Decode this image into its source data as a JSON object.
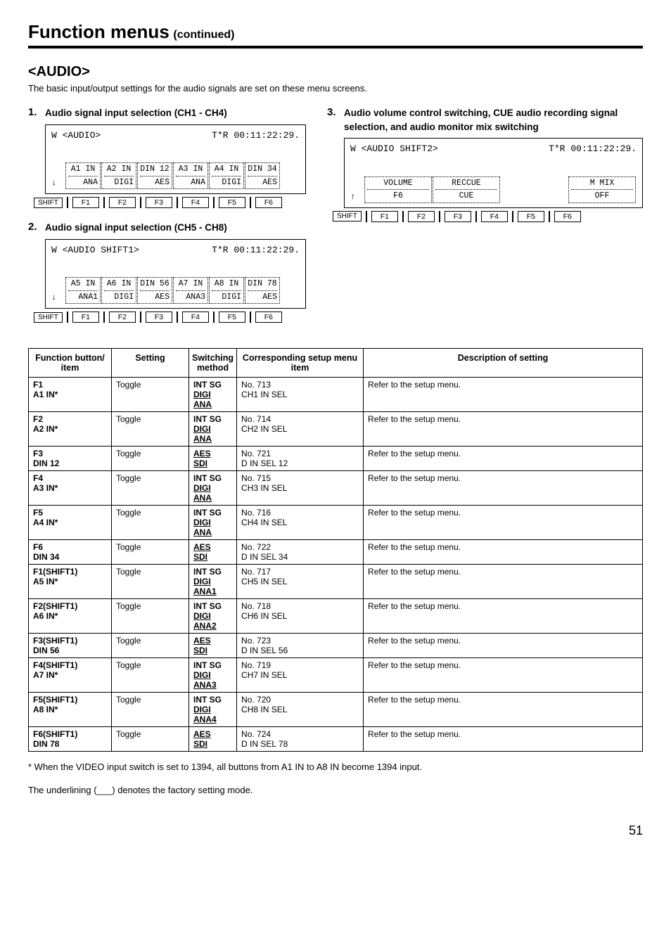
{
  "page": {
    "title_main": "Function menus",
    "title_sub": "(continued)",
    "section_heading": "<AUDIO>",
    "section_intro": "The basic input/output settings for the audio signals are set on these menu screens.",
    "page_number": "51"
  },
  "items": {
    "i1": {
      "num": "1.",
      "title": "Audio signal input selection (CH1 - CH4)"
    },
    "i2": {
      "num": "2.",
      "title": "Audio signal input selection (CH5 - CH8)"
    },
    "i3": {
      "num": "3.",
      "title": "Audio volume control switching, CUE audio recording signal selection, and audio monitor mix switching"
    }
  },
  "lcd1": {
    "hdr_left": "W <AUDIO>",
    "hdr_right": "T*R 00:11:22:29.",
    "arrow": "↓",
    "s1_top": "A1 IN",
    "s1_bot": "ANA",
    "s2_top": "A2 IN",
    "s2_bot": "DIGI",
    "s3_top": "DIN 12",
    "s3_bot": "AES",
    "s4_top": "A3 IN",
    "s4_bot": "ANA",
    "s5_top": "A4 IN",
    "s5_bot": "DIGI",
    "s6_top": "DIN 34",
    "s6_bot": "AES"
  },
  "lcd2": {
    "hdr_left": "W <AUDIO SHIFT1>",
    "hdr_right": "T*R 00:11:22:29.",
    "arrow": "↓",
    "s1_top": "A5 IN",
    "s1_bot": "ANA1",
    "s2_top": "A6 IN",
    "s2_bot": "DIGI",
    "s3_top": "DIN 56",
    "s3_bot": "AES",
    "s4_top": "A7 IN",
    "s4_bot": "ANA3",
    "s5_top": "A8 IN",
    "s5_bot": "DIGI",
    "s6_top": "DIN 78",
    "s6_bot": "AES"
  },
  "lcd3": {
    "hdr_left": "W <AUDIO SHIFT2>",
    "hdr_right": "T*R 00:11:22:29.",
    "arrow": "↑",
    "s1_top": "VOLUME",
    "s1_bot": "F6",
    "s2_top": "RECCUE",
    "s2_bot": "CUE",
    "s4_top": "M MIX",
    "s4_bot": "OFF"
  },
  "btns": {
    "shift": "SHIFT",
    "f1": "F1",
    "f2": "F2",
    "f3": "F3",
    "f4": "F4",
    "f5": "F5",
    "f6": "F6"
  },
  "table": {
    "h1": "Function button/ item",
    "h2": "Setting",
    "h3": "Switching method",
    "h4": "Corresponding setup menu item",
    "h5": "Description of setting",
    "rows": [
      {
        "c1a": "F1",
        "c1b": "A1 IN*",
        "c2": "Toggle",
        "c3": [
          "INT SG",
          "DIGI",
          "ANA"
        ],
        "c4a": "No. 713",
        "c4b": "CH1 IN SEL",
        "c5": "Refer to the setup menu."
      },
      {
        "c1a": "F2",
        "c1b": "A2 IN*",
        "c2": "Toggle",
        "c3": [
          "INT SG",
          "DIGI",
          "ANA"
        ],
        "c4a": "No. 714",
        "c4b": "CH2 IN SEL",
        "c5": "Refer to the setup menu."
      },
      {
        "c1a": "F3",
        "c1b": "DIN 12",
        "c2": "Toggle",
        "c3": [
          "AES",
          "SDI"
        ],
        "c4a": "No. 721",
        "c4b": "D IN SEL 12",
        "c5": "Refer to the setup menu."
      },
      {
        "c1a": "F4",
        "c1b": "A3 IN*",
        "c2": "Toggle",
        "c3": [
          "INT SG",
          "DIGI",
          "ANA"
        ],
        "c4a": "No. 715",
        "c4b": "CH3 IN SEL",
        "c5": "Refer to the setup menu."
      },
      {
        "c1a": "F5",
        "c1b": "A4 IN*",
        "c2": "Toggle",
        "c3": [
          "INT SG",
          "DIGI",
          "ANA"
        ],
        "c4a": "No. 716",
        "c4b": "CH4 IN SEL",
        "c5": "Refer to the setup menu."
      },
      {
        "c1a": "F6",
        "c1b": "DIN 34",
        "c2": "Toggle",
        "c3": [
          "AES",
          "SDI"
        ],
        "c4a": "No. 722",
        "c4b": "D IN SEL 34",
        "c5": "Refer to the setup menu."
      },
      {
        "c1a": "F1(SHIFT1)",
        "c1b": "A5 IN*",
        "c2": "Toggle",
        "c3": [
          "INT SG",
          "DIGI",
          "ANA1"
        ],
        "c4a": "No. 717",
        "c4b": "CH5 IN SEL",
        "c5": "Refer to the setup menu."
      },
      {
        "c1a": "F2(SHIFT1)",
        "c1b": "A6 IN*",
        "c2": "Toggle",
        "c3": [
          "INT SG",
          "DIGI",
          "ANA2"
        ],
        "c4a": "No. 718",
        "c4b": "CH6 IN SEL",
        "c5": "Refer to the setup menu."
      },
      {
        "c1a": "F3(SHIFT1)",
        "c1b": "DIN 56",
        "c2": "Toggle",
        "c3": [
          "AES",
          "SDI"
        ],
        "c4a": "No. 723",
        "c4b": "D IN SEL 56",
        "c5": "Refer to the setup menu."
      },
      {
        "c1a": "F4(SHIFT1)",
        "c1b": "A7 IN*",
        "c2": "Toggle",
        "c3": [
          "INT SG",
          "DIGI",
          "ANA3"
        ],
        "c4a": "No. 719",
        "c4b": "CH7 IN SEL",
        "c5": "Refer to the setup menu."
      },
      {
        "c1a": "F5(SHIFT1)",
        "c1b": "A8 IN*",
        "c2": "Toggle",
        "c3": [
          "INT SG",
          "DIGI",
          "ANA4"
        ],
        "c4a": "No. 720",
        "c4b": "CH8 IN SEL",
        "c5": "Refer to the setup menu."
      },
      {
        "c1a": "F6(SHIFT1)",
        "c1b": "DIN 78",
        "c2": "Toggle",
        "c3": [
          "AES",
          "SDI"
        ],
        "c4a": "No. 724",
        "c4b": "D IN SEL 78",
        "c5": "Refer to the setup menu."
      }
    ]
  },
  "foot": {
    "f1": "* When the VIDEO input switch is set to 1394, all buttons from A1 IN to A8 IN become 1394 input.",
    "f2": "The underlining (___) denotes the factory setting mode."
  }
}
